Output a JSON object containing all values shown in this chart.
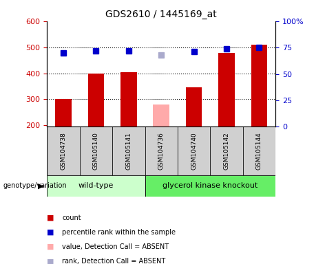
{
  "title": "GDS2610 / 1445169_at",
  "samples": [
    "GSM104738",
    "GSM105140",
    "GSM105141",
    "GSM104736",
    "GSM104740",
    "GSM105142",
    "GSM105144"
  ],
  "bar_values": [
    300,
    400,
    405,
    280,
    345,
    478,
    510
  ],
  "bar_absent": [
    false,
    false,
    false,
    true,
    false,
    false,
    false
  ],
  "rank_values": [
    70,
    72,
    72,
    68,
    71,
    74,
    75
  ],
  "rank_absent": [
    false,
    false,
    false,
    true,
    false,
    false,
    false
  ],
  "bar_color_normal": "#cc0000",
  "bar_color_absent": "#ffaaaa",
  "rank_color_normal": "#0000cc",
  "rank_color_absent": "#aaaacc",
  "ylim_left": [
    195,
    600
  ],
  "ylim_right": [
    0,
    100
  ],
  "yticks_left": [
    200,
    300,
    400,
    500,
    600
  ],
  "yticks_right": [
    0,
    25,
    50,
    75,
    100
  ],
  "ytick_labels_right": [
    "0",
    "25",
    "50",
    "75",
    "100%"
  ],
  "hlines": [
    300,
    400,
    500
  ],
  "group1_label": "wild-type",
  "group2_label": "glycerol kinase knockout",
  "group1_indices": [
    0,
    1,
    2
  ],
  "group2_indices": [
    3,
    4,
    5,
    6
  ],
  "genotype_label": "genotype/variation",
  "legend_items": [
    {
      "label": "count",
      "color": "#cc0000"
    },
    {
      "label": "percentile rank within the sample",
      "color": "#0000cc"
    },
    {
      "label": "value, Detection Call = ABSENT",
      "color": "#ffaaaa"
    },
    {
      "label": "rank, Detection Call = ABSENT",
      "color": "#aaaacc"
    }
  ],
  "bar_width": 0.5,
  "rank_marker_size": 6,
  "plot_bg_color": "#ffffff",
  "group_bg_color_1": "#ccffcc",
  "group_bg_color_2": "#66ee66",
  "tick_box_color": "#d0d0d0"
}
